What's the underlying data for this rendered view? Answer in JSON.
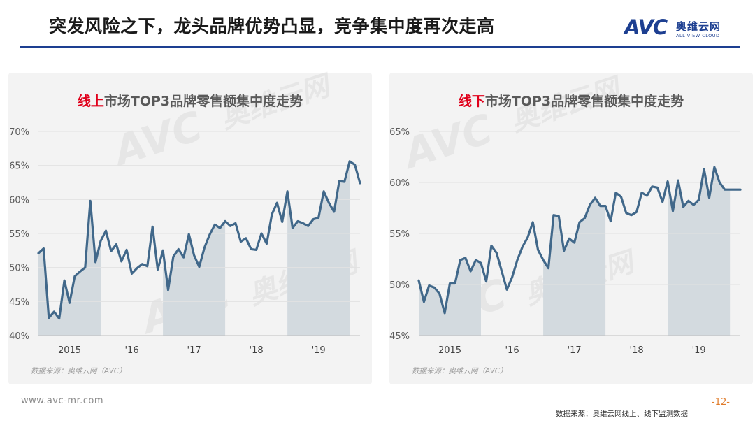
{
  "header": {
    "title": "突发风险之下，龙头品牌优势凸显，竞争集中度再次走高",
    "logo_mark": "AVC",
    "logo_cn": "奥维云网",
    "logo_en": "ALL VIEW CLOUD"
  },
  "footer": {
    "url": "www.avc-mr.com",
    "page": "-12-",
    "note": "数据来源：奥维云网线上、线下监测数据"
  },
  "watermark": {
    "mark": "AVC",
    "cn": "奥维云网",
    "en": "ALL VIEW CLOUD"
  },
  "colors": {
    "line": "#41688a",
    "shade": "#d3dadf",
    "accent": "#e0001b",
    "brand": "#1d3f91"
  },
  "chart_data": [
    {
      "type": "line",
      "title_highlight": "线上",
      "title_rest": "市场TOP3品牌零售额集中度走势",
      "source": "数据来源：奥维云网（AVC）",
      "y_unit": "percent",
      "ylim": [
        40,
        70
      ],
      "yticks": [
        "70%",
        "65%",
        "60%",
        "55%",
        "50%",
        "45%",
        "40%"
      ],
      "xticks": [
        "2015",
        "'16",
        "'17",
        "'18",
        "'19"
      ],
      "shaded_years": [
        "2015",
        "'17",
        "'19"
      ],
      "grid": true,
      "series": [
        {
          "values": [
            52.1,
            52.8,
            42.6,
            43.5,
            42.5,
            48.1,
            44.8,
            48.7,
            49.4,
            50.0,
            59.8,
            50.8,
            53.9,
            55.4,
            52.4,
            53.4,
            50.9,
            52.6,
            49.1,
            49.9,
            50.5,
            50.2,
            56.0,
            49.7,
            52.5,
            46.7,
            51.6,
            52.7,
            51.5,
            54.9,
            51.8,
            50.1,
            52.9,
            54.8,
            56.3,
            55.8,
            56.8,
            56.1,
            56.5,
            53.8,
            54.3,
            52.7,
            52.6,
            55.0,
            53.5,
            57.8,
            59.5,
            56.7,
            61.2,
            55.8,
            56.8,
            56.5,
            56.1,
            57.1,
            57.3,
            61.2,
            59.5,
            58.2,
            62.7,
            62.6,
            65.6,
            65.1,
            62.4
          ]
        }
      ]
    },
    {
      "type": "line",
      "title_highlight": "线下",
      "title_rest": "市场TOP3品牌零售额集中度走势",
      "source": "数据来源：奥维云网（AVC）",
      "y_unit": "percent",
      "ylim": [
        45,
        65
      ],
      "yticks": [
        "65%",
        "60%",
        "55%",
        "50%",
        "45%"
      ],
      "xticks": [
        "2015",
        "'16",
        "'17",
        "'18",
        "'19"
      ],
      "shaded_years": [
        "2015",
        "'17",
        "'19"
      ],
      "grid": true,
      "series": [
        {
          "values": [
            50.4,
            48.3,
            49.9,
            49.7,
            49.1,
            47.2,
            50.1,
            50.1,
            52.4,
            52.6,
            51.3,
            52.4,
            52.1,
            50.3,
            53.8,
            53.1,
            51.3,
            49.5,
            50.7,
            52.4,
            53.7,
            54.6,
            56.1,
            53.4,
            52.4,
            51.6,
            56.8,
            56.7,
            53.3,
            54.5,
            54.1,
            56.1,
            56.5,
            57.8,
            58.5,
            57.7,
            57.7,
            56.2,
            59.0,
            58.6,
            57.0,
            56.8,
            57.1,
            59.0,
            58.7,
            59.6,
            59.5,
            58.1,
            60.1,
            57.2,
            60.2,
            57.6,
            58.2,
            57.8,
            58.3,
            61.3,
            58.5,
            61.5,
            60.0,
            59.3,
            59.3,
            59.3,
            59.3
          ]
        }
      ]
    }
  ]
}
